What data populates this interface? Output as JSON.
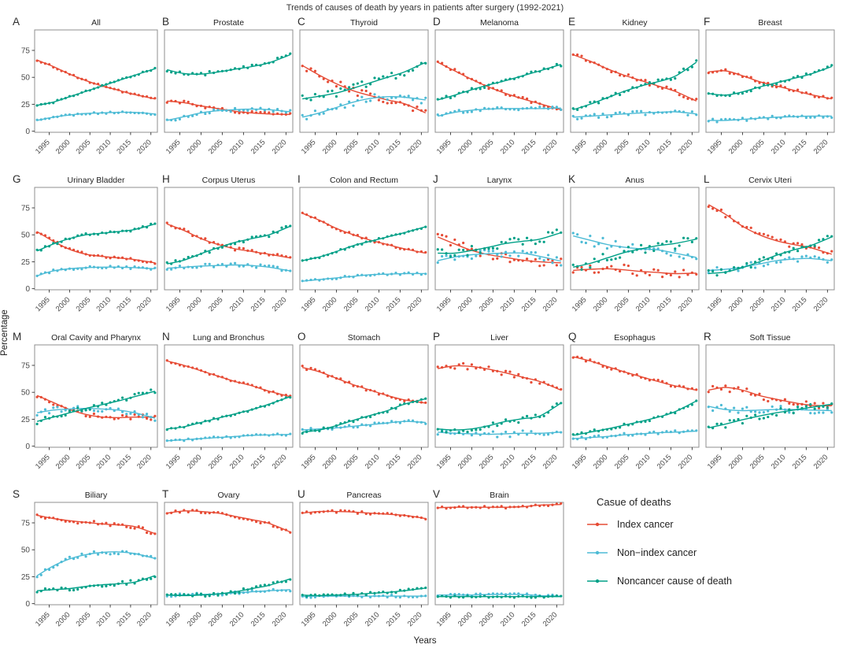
{
  "figure_title": "Trends of causes of death by years in patients after surgery (1992-2021)",
  "axis": {
    "y_label": "Percentage",
    "x_label": "Years"
  },
  "colors": {
    "index": "#E64B35",
    "nonindex": "#4DBBD5",
    "noncancer": "#00A087"
  },
  "legend": {
    "title": "Casue of deaths",
    "items": [
      {
        "key": "index",
        "label": "Index cancer"
      },
      {
        "key": "nonindex",
        "label": "Non−index cancer"
      },
      {
        "key": "noncancer",
        "label": "Noncancer cause of death"
      }
    ]
  },
  "chart_data": {
    "type": "scatter",
    "smoother": "loess",
    "x_label": "Years",
    "y_label": "Percentage",
    "x_ticks": [
      1995,
      2000,
      2005,
      2010,
      2015,
      2020
    ],
    "y_ticks": [
      0,
      25,
      50,
      75
    ],
    "x_range": [
      1992,
      2021
    ],
    "y_range": [
      0,
      93
    ],
    "anchor_years": [
      1992,
      1996,
      2000,
      2004,
      2008,
      2012,
      2016,
      2021
    ],
    "series_keys": [
      "index",
      "nonindex",
      "noncancer"
    ],
    "panels": [
      {
        "label": "A",
        "title": "All",
        "noise": 0.8,
        "series": {
          "index": [
            66,
            60,
            53,
            47,
            42,
            38,
            34,
            30
          ],
          "nonindex": [
            10,
            13,
            15,
            16.5,
            17,
            17.5,
            17.5,
            16
          ],
          "noncancer": [
            24,
            27,
            32,
            37,
            42,
            47,
            52,
            58
          ]
        }
      },
      {
        "label": "B",
        "title": "Prostate",
        "noise": 1.6,
        "series": {
          "index": [
            28,
            26.5,
            23.5,
            21,
            18.5,
            17,
            16,
            15.5
          ],
          "nonindex": [
            10,
            13.5,
            17,
            19,
            20,
            20.5,
            20,
            18
          ],
          "noncancer": [
            57,
            53.5,
            53,
            55,
            57.5,
            60,
            63.5,
            71
          ]
        }
      },
      {
        "label": "C",
        "title": "Thyroid",
        "noise": 3.5,
        "series": {
          "index": [
            61,
            52,
            44,
            37.5,
            33,
            29,
            25.5,
            17
          ],
          "nonindex": [
            13,
            17,
            22,
            27,
            30.5,
            32,
            31.5,
            29
          ],
          "noncancer": [
            30,
            32.5,
            35.5,
            40,
            45,
            50,
            55,
            64
          ]
        }
      },
      {
        "label": "D",
        "title": "Melanoma",
        "noise": 1.6,
        "series": {
          "index": [
            64,
            56,
            48,
            41,
            35,
            30,
            25.5,
            20
          ],
          "nonindex": [
            14,
            17.5,
            19.5,
            20.5,
            21,
            21,
            21,
            21.5
          ],
          "noncancer": [
            29,
            33.5,
            38.5,
            43,
            47,
            51.5,
            56,
            62
          ]
        }
      },
      {
        "label": "E",
        "title": "Kidney",
        "noise": 2,
        "series": {
          "index": [
            71,
            65,
            58,
            52,
            47,
            42,
            37,
            28
          ],
          "nonindex": [
            13,
            14,
            15,
            16,
            17,
            17.5,
            18,
            16
          ],
          "noncancer": [
            20,
            25,
            31,
            37,
            42,
            46,
            51,
            64
          ]
        }
      },
      {
        "label": "F",
        "title": "Breast",
        "noise": 1.5,
        "series": {
          "index": [
            55,
            56,
            51.5,
            46,
            42,
            38,
            34,
            30
          ],
          "nonindex": [
            10,
            10,
            11,
            12,
            13,
            13.5,
            14,
            14
          ],
          "noncancer": [
            35,
            33.5,
            36.5,
            41,
            45,
            49,
            53,
            60
          ]
        }
      },
      {
        "label": "G",
        "title": "Urinary Bladder",
        "noise": 1.2,
        "series": {
          "index": [
            53,
            44,
            36.5,
            32,
            30,
            28.5,
            27,
            24
          ],
          "nonindex": [
            12,
            16.5,
            18.5,
            19.5,
            20,
            20,
            19.5,
            18.5
          ],
          "noncancer": [
            35,
            41.5,
            46.5,
            50,
            51.5,
            53,
            55,
            60
          ]
        }
      },
      {
        "label": "H",
        "title": "Corpus Uterus",
        "noise": 1.8,
        "series": {
          "index": [
            60,
            54,
            46.5,
            41,
            37,
            34.5,
            32,
            28.5
          ],
          "nonindex": [
            19,
            20,
            21,
            21.5,
            22,
            21.5,
            20,
            16.5
          ],
          "noncancer": [
            23,
            26.5,
            32.5,
            38,
            43,
            46.5,
            50,
            58
          ]
        }
      },
      {
        "label": "I",
        "title": "Colon and Rectum",
        "noise": 1,
        "series": {
          "index": [
            70,
            63.5,
            56,
            50,
            45,
            41,
            37,
            33
          ],
          "nonindex": [
            7,
            8.5,
            10,
            11.5,
            13,
            13.5,
            14,
            14
          ],
          "noncancer": [
            26,
            29.5,
            34.5,
            40,
            44,
            48,
            52,
            57.5
          ]
        }
      },
      {
        "label": "J",
        "title": "Larynx",
        "noise": 4,
        "series": {
          "index": [
            48,
            41.5,
            35.5,
            31.5,
            29,
            26.5,
            25,
            24
          ],
          "nonindex": [
            26,
            29.5,
            31.5,
            32.5,
            33,
            33,
            30,
            25.5
          ],
          "noncancer": [
            33,
            33,
            35.5,
            38.5,
            42,
            44,
            46,
            52
          ]
        }
      },
      {
        "label": "K",
        "title": "Anus",
        "noise": 5,
        "series": {
          "index": [
            17,
            18,
            18.5,
            17.5,
            16,
            15,
            14,
            14.5
          ],
          "nonindex": [
            49,
            45,
            41,
            38.5,
            37,
            36,
            33,
            29
          ],
          "noncancer": [
            20,
            23.5,
            28.5,
            33.5,
            37,
            40,
            42,
            46
          ]
        }
      },
      {
        "label": "L",
        "title": "Cervix Uteri",
        "noise": 3,
        "series": {
          "index": [
            78,
            69,
            58,
            50,
            44.5,
            41,
            38,
            32
          ],
          "nonindex": [
            17,
            18,
            20,
            23,
            26,
            27.5,
            28,
            26
          ],
          "noncancer": [
            14,
            15.5,
            19.5,
            25,
            31,
            36,
            40,
            48
          ]
        }
      },
      {
        "label": "M",
        "title": "Oral Cavity and Pharynx",
        "noise": 2.5,
        "series": {
          "index": [
            47,
            40.5,
            34,
            29.5,
            27,
            26.5,
            27,
            27
          ],
          "nonindex": [
            31,
            33.5,
            34.5,
            35,
            34.5,
            33.5,
            31,
            26
          ],
          "noncancer": [
            23,
            27,
            31,
            35,
            38.5,
            42,
            46,
            51
          ]
        }
      },
      {
        "label": "N",
        "title": "Lung and Bronchus",
        "noise": 1,
        "series": {
          "index": [
            79,
            75,
            70,
            65,
            60,
            56,
            51,
            46
          ],
          "nonindex": [
            5,
            6,
            7,
            8,
            9,
            10,
            10.5,
            11
          ],
          "noncancer": [
            16,
            18,
            22,
            26,
            30,
            34,
            39,
            46
          ]
        }
      },
      {
        "label": "O",
        "title": "Stomach",
        "noise": 1.5,
        "series": {
          "index": [
            73,
            69,
            63,
            57,
            52,
            47,
            43,
            40
          ],
          "nonindex": [
            15,
            16,
            17,
            18.5,
            20,
            21.5,
            23,
            22
          ],
          "noncancer": [
            13,
            15,
            19,
            24,
            28.5,
            33,
            39,
            44
          ]
        }
      },
      {
        "label": "P",
        "title": "Liver",
        "noise": 3,
        "series": {
          "index": [
            72,
            74.5,
            74,
            71.5,
            68,
            64,
            60,
            52
          ],
          "nonindex": [
            13,
            12,
            11.5,
            11,
            11.5,
            12,
            12,
            13
          ],
          "noncancer": [
            16,
            15,
            16,
            19,
            23,
            25.5,
            28,
            40
          ]
        }
      },
      {
        "label": "Q",
        "title": "Esophagus",
        "noise": 1.6,
        "series": {
          "index": [
            83,
            79,
            74,
            69,
            64.5,
            60,
            56,
            52
          ],
          "nonindex": [
            7,
            8,
            9,
            10.5,
            11.5,
            12.5,
            13,
            14
          ],
          "noncancer": [
            10,
            13,
            16,
            19.5,
            23,
            27,
            32,
            42
          ]
        }
      },
      {
        "label": "R",
        "title": "Soft Tissue",
        "noise": 3.5,
        "series": {
          "index": [
            52,
            54.5,
            52,
            47,
            43.5,
            40.5,
            38,
            37.5
          ],
          "nonindex": [
            37,
            34,
            33,
            33.5,
            34,
            34,
            33.5,
            33
          ],
          "noncancer": [
            17,
            20.5,
            24.5,
            28,
            31,
            33.5,
            36,
            39
          ]
        }
      },
      {
        "label": "S",
        "title": "Biliary",
        "noise": 2,
        "series": {
          "index": [
            82,
            79,
            77,
            75.5,
            74,
            73,
            71.5,
            65
          ],
          "nonindex": [
            26,
            35,
            41.5,
            45.5,
            47.5,
            48,
            46.5,
            42
          ],
          "noncancer": [
            12,
            13,
            14,
            16,
            17.5,
            18.5,
            20,
            26
          ]
        }
      },
      {
        "label": "T",
        "title": "Ovary",
        "noise": 1.5,
        "series": {
          "index": [
            84,
            86,
            85.5,
            84,
            81,
            78,
            74.5,
            66.5
          ],
          "nonindex": [
            8,
            8,
            8.5,
            9,
            10,
            11,
            12,
            13
          ],
          "noncancer": [
            8,
            7.5,
            8,
            9,
            11,
            14,
            17,
            23
          ]
        }
      },
      {
        "label": "U",
        "title": "Pancreas",
        "noise": 1.2,
        "series": {
          "index": [
            84,
            85.5,
            85.5,
            85,
            84,
            83,
            82,
            79
          ],
          "nonindex": [
            6.5,
            7,
            7,
            7,
            7,
            7,
            7,
            7
          ],
          "noncancer": [
            8,
            7.5,
            8,
            8.5,
            9.5,
            10.5,
            12,
            14.5
          ]
        }
      },
      {
        "label": "V",
        "title": "Brain",
        "noise": 1,
        "series": {
          "index": [
            89,
            89.5,
            89.5,
            89.5,
            89.5,
            90,
            91.5,
            92
          ],
          "nonindex": [
            8,
            8,
            8,
            8.5,
            8.5,
            8.5,
            7.5,
            7
          ],
          "noncancer": [
            6.5,
            6.5,
            6.5,
            6.5,
            6.5,
            6.5,
            6.5,
            6.5
          ]
        }
      }
    ]
  }
}
